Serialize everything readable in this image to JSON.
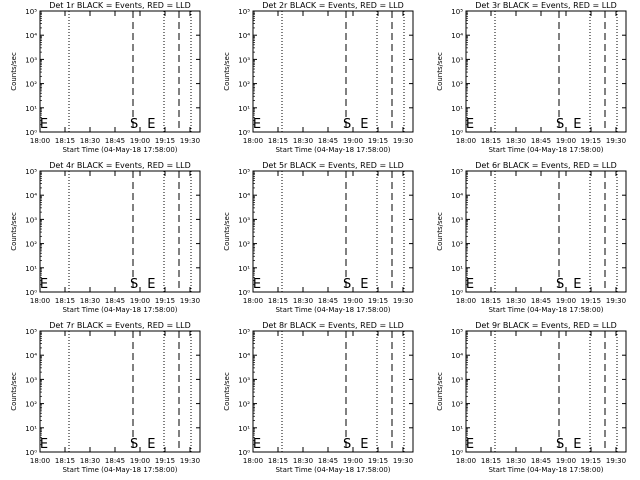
{
  "colors": {
    "background": "#ffffff",
    "ink": "#000000"
  },
  "common": {
    "ylabel": "Counts/sec",
    "xlabel": "Start Time (04-May-18 17:58:00)",
    "ytick_labels": [
      "10⁰",
      "10¹",
      "10²",
      "10³",
      "10⁴",
      "10⁵"
    ],
    "xtick_labels_ab": [
      "18:00",
      "18:15",
      "18:30",
      "18:45",
      "19:00",
      "19:15",
      "19:30"
    ],
    "xtick_labels_c": [
      "18:00",
      "18:15",
      "18:30",
      "18:45",
      "19:00",
      "19:15",
      "19:30"
    ]
  },
  "chart_data": [
    {
      "type": "line",
      "title": "Det 1r BLACK = Events, RED = LLD",
      "xlabel": "Start Time (04-May-18 17:58:00)",
      "ylabel": "Counts/sec",
      "yscale": "log",
      "ylim": [
        1,
        100000
      ],
      "xlim": [
        "17:58",
        "19:40"
      ],
      "markers": [
        {
          "label": "E",
          "time": "17:58"
        },
        {
          "label": "S",
          "time": "18:58"
        },
        {
          "label": "E",
          "time": "19:09"
        }
      ],
      "series": []
    },
    {
      "type": "line",
      "title": "Det 2r BLACK = Events, RED = LLD",
      "xlabel": "Start Time (04-May-18 17:58:00)",
      "ylabel": "Counts/sec",
      "yscale": "log",
      "ylim": [
        1,
        100000
      ],
      "xlim": [
        "17:58",
        "19:40"
      ],
      "markers": [
        {
          "label": "E",
          "time": "17:58"
        },
        {
          "label": "S",
          "time": "18:58"
        },
        {
          "label": "E",
          "time": "19:09"
        }
      ],
      "series": []
    },
    {
      "type": "line",
      "title": "Det 3r BLACK = Events, RED = LLD",
      "xlabel": "Start Time (04-May-18 17:58:00)",
      "ylabel": "Counts/sec",
      "yscale": "log",
      "ylim": [
        1,
        100000
      ],
      "xlim": [
        "17:58",
        "19:40"
      ],
      "markers": [
        {
          "label": "E",
          "time": "17:58"
        },
        {
          "label": "S",
          "time": "18:58"
        },
        {
          "label": "E",
          "time": "19:09"
        }
      ],
      "series": []
    },
    {
      "type": "line",
      "title": "Det 4r BLACK = Events, RED = LLD",
      "xlabel": "Start Time (04-May-18 17:58:00)",
      "ylabel": "Counts/sec",
      "yscale": "log",
      "ylim": [
        1,
        100000
      ],
      "xlim": [
        "17:58",
        "19:40"
      ],
      "markers": [
        {
          "label": "E",
          "time": "17:58"
        },
        {
          "label": "S",
          "time": "18:58"
        },
        {
          "label": "E",
          "time": "19:09"
        }
      ],
      "series": []
    },
    {
      "type": "line",
      "title": "Det 5r BLACK = Events, RED = LLD",
      "xlabel": "Start Time (04-May-18 17:58:00)",
      "ylabel": "Counts/sec",
      "yscale": "log",
      "ylim": [
        1,
        100000
      ],
      "xlim": [
        "17:58",
        "19:40"
      ],
      "markers": [
        {
          "label": "E",
          "time": "17:58"
        },
        {
          "label": "S",
          "time": "18:58"
        },
        {
          "label": "E",
          "time": "19:09"
        }
      ],
      "series": []
    },
    {
      "type": "line",
      "title": "Det 6r BLACK = Events, RED = LLD",
      "xlabel": "Start Time (04-May-18 17:58:00)",
      "ylabel": "Counts/sec",
      "yscale": "log",
      "ylim": [
        1,
        100000
      ],
      "xlim": [
        "17:58",
        "19:40"
      ],
      "markers": [
        {
          "label": "E",
          "time": "17:58"
        },
        {
          "label": "S",
          "time": "18:58"
        },
        {
          "label": "E",
          "time": "19:09"
        }
      ],
      "series": []
    },
    {
      "type": "line",
      "title": "Det 7r BLACK = Events, RED = LLD",
      "xlabel": "Start Time (04-May-18 17:58:00)",
      "ylabel": "Counts/sec",
      "yscale": "log",
      "ylim": [
        1,
        100000
      ],
      "xlim": [
        "17:58",
        "19:40"
      ],
      "markers": [
        {
          "label": "E",
          "time": "17:58"
        },
        {
          "label": "S",
          "time": "18:58"
        },
        {
          "label": "E",
          "time": "19:09"
        }
      ],
      "series": []
    },
    {
      "type": "line",
      "title": "Det 8r BLACK = Events, RED = LLD",
      "xlabel": "Start Time (04-May-18 17:58:00)",
      "ylabel": "Counts/sec",
      "yscale": "log",
      "ylim": [
        1,
        100000
      ],
      "xlim": [
        "17:58",
        "19:40"
      ],
      "markers": [
        {
          "label": "E",
          "time": "17:58"
        },
        {
          "label": "S",
          "time": "18:58"
        },
        {
          "label": "E",
          "time": "19:09"
        }
      ],
      "series": []
    },
    {
      "type": "line",
      "title": "Det 9r BLACK = Events, RED = LLD",
      "xlabel": "Start Time (04-May-18 17:58:00)",
      "ylabel": "Counts/sec",
      "yscale": "log",
      "ylim": [
        1,
        100000
      ],
      "xlim": [
        "17:58",
        "19:40"
      ],
      "markers": [
        {
          "label": "E",
          "time": "17:58"
        },
        {
          "label": "S",
          "time": "18:58"
        },
        {
          "label": "E",
          "time": "19:09"
        }
      ],
      "series": []
    }
  ]
}
